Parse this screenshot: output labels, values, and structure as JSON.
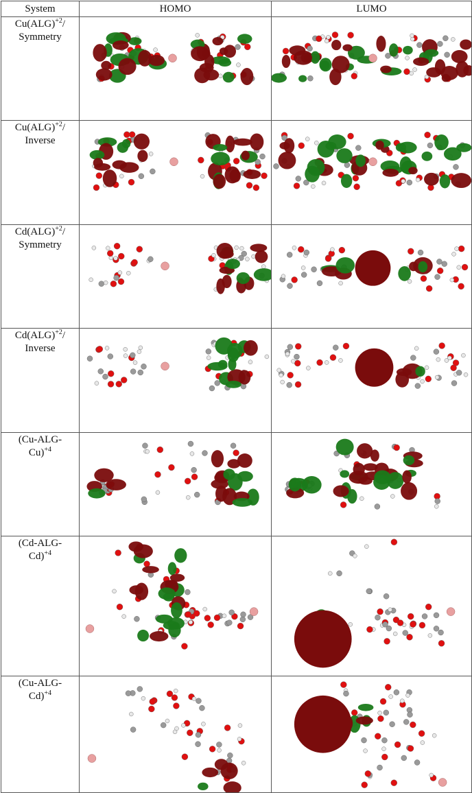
{
  "table": {
    "headers": [
      "System",
      "HOMO",
      "LUMO"
    ],
    "rows": [
      {
        "l1": "Cu(ALG)",
        "l1sup": "+2",
        "l1post": "/",
        "l2": "Symmetry",
        "l2sup": ""
      },
      {
        "l1": "Cu(ALG)",
        "l1sup": "+2",
        "l1post": "/",
        "l2": "Inverse",
        "l2sup": ""
      },
      {
        "l1": "Cd(ALG)",
        "l1sup": "+2",
        "l1post": "/",
        "l2": "Symmetry",
        "l2sup": ""
      },
      {
        "l1": "Cd(ALG)",
        "l1sup": "+2",
        "l1post": "/",
        "l2": "Inverse",
        "l2sup": ""
      },
      {
        "l1": "(Cu-ALG-",
        "l1sup": "",
        "l1post": "",
        "l2": "Cu)",
        "l2sup": "+4"
      },
      {
        "l1": "(Cd-ALG-",
        "l1sup": "",
        "l1post": "",
        "l2": "Cd)",
        "l2sup": "+4"
      },
      {
        "l1": "(Cu-ALG-",
        "l1sup": "",
        "l1post": "",
        "l2": "Cd)",
        "l2sup": "+4"
      }
    ]
  },
  "colors": {
    "positive_lobe": "#1a7a1a",
    "negative_lobe": "#7a0c0c",
    "oxygen": "#e01010",
    "hydrogen": "#e8e8e8",
    "carbon": "#9a9a9a",
    "metal": "#e8a0a0"
  }
}
